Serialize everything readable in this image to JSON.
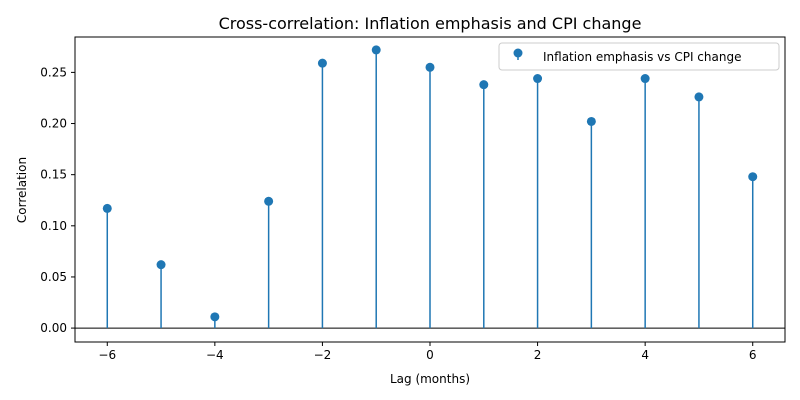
{
  "chart_data": {
    "type": "stem",
    "title": "Cross-correlation: Inflation emphasis and CPI change",
    "xlabel": "Lag (months)",
    "ylabel": "Correlation",
    "xlim": [
      -6.6,
      6.6
    ],
    "ylim": [
      -0.0136,
      0.2846
    ],
    "xticks": [
      -6,
      -4,
      -2,
      0,
      2,
      4,
      6
    ],
    "xtick_labels": [
      "−6",
      "−4",
      "−2",
      "0",
      "2",
      "4",
      "6"
    ],
    "yticks": [
      0.0,
      0.05,
      0.1,
      0.15,
      0.2,
      0.25
    ],
    "ytick_labels": [
      "0.00",
      "0.05",
      "0.10",
      "0.15",
      "0.20",
      "0.25"
    ],
    "baseline": 0,
    "grid": false,
    "legend_position": "top-right",
    "color": "#1f77b4",
    "series": [
      {
        "name": "Inflation emphasis vs CPI change",
        "x": [
          -6,
          -5,
          -4,
          -3,
          -2,
          -1,
          0,
          1,
          2,
          3,
          4,
          5,
          6
        ],
        "y": [
          0.117,
          0.062,
          0.011,
          0.124,
          0.259,
          0.272,
          0.255,
          0.238,
          0.244,
          0.202,
          0.244,
          0.226,
          0.148
        ]
      }
    ]
  }
}
